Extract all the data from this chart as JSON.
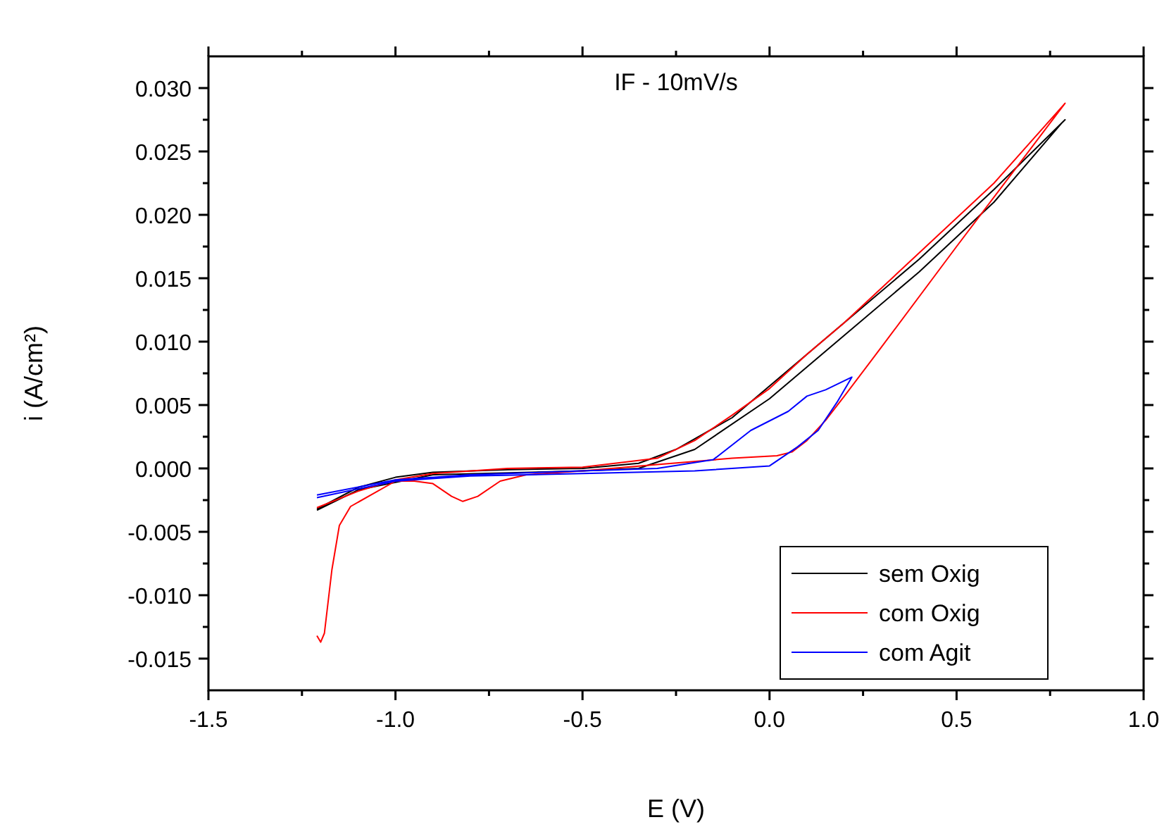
{
  "chart_data": {
    "type": "line",
    "title": "IF - 10mV/s",
    "xlabel": "E (V)",
    "ylabel": "i (A/cm²)",
    "xlim": [
      -1.5,
      1.0
    ],
    "ylim": [
      -0.0175,
      0.0325
    ],
    "xticks": [
      {
        "value": -1.5,
        "label": "-1.5"
      },
      {
        "value": -1.25,
        "label": null
      },
      {
        "value": -1.0,
        "label": "-1.0"
      },
      {
        "value": -0.75,
        "label": null
      },
      {
        "value": -0.5,
        "label": "-0.5"
      },
      {
        "value": -0.25,
        "label": null
      },
      {
        "value": 0,
        "label": "0.0"
      },
      {
        "value": 0.25,
        "label": null
      },
      {
        "value": 0.5,
        "label": "0.5"
      },
      {
        "value": 0.75,
        "label": null
      },
      {
        "value": 1.0,
        "label": "1.0"
      }
    ],
    "yticks": [
      {
        "value": -0.015,
        "label": "-0.015"
      },
      {
        "value": -0.0125,
        "label": null
      },
      {
        "value": -0.01,
        "label": "-0.010"
      },
      {
        "value": -0.0075,
        "label": null
      },
      {
        "value": -0.005,
        "label": "-0.005"
      },
      {
        "value": -0.0025,
        "label": null
      },
      {
        "value": 0,
        "label": "0.000"
      },
      {
        "value": 0.0025,
        "label": null
      },
      {
        "value": 0.005,
        "label": "0.005"
      },
      {
        "value": 0.0075,
        "label": null
      },
      {
        "value": 0.01,
        "label": "0.010"
      },
      {
        "value": 0.0125,
        "label": null
      },
      {
        "value": 0.015,
        "label": "0.015"
      },
      {
        "value": 0.0175,
        "label": null
      },
      {
        "value": 0.02,
        "label": "0.020"
      },
      {
        "value": 0.0225,
        "label": null
      },
      {
        "value": 0.025,
        "label": "0.025"
      },
      {
        "value": 0.0275,
        "label": null
      },
      {
        "value": 0.03,
        "label": "0.030"
      }
    ],
    "grid": false,
    "legend": "bottom right",
    "marker": "none",
    "line_style": "solid",
    "series": [
      {
        "name": "sem Oxig",
        "color": "#000000",
        "x": [
          -1.21,
          -1.1,
          -1.0,
          -0.9,
          -0.7,
          -0.5,
          -0.35,
          -0.25,
          -0.1,
          0,
          0.2,
          0.4,
          0.6,
          0.79,
          0.78,
          0.6,
          0.4,
          0.2,
          0,
          -0.2,
          -0.35,
          -0.5,
          -0.9,
          -1.1,
          -1.21
        ],
        "values": [
          -0.0032,
          -0.0015,
          -0.0007,
          -0.0003,
          -0.0001,
          0,
          0.0004,
          0.0015,
          0.004,
          0.0065,
          0.0115,
          0.0165,
          0.022,
          0.0275,
          0.0272,
          0.021,
          0.0155,
          0.0105,
          0.0055,
          0.0015,
          0,
          -0.0002,
          -0.0005,
          -0.0017,
          -0.0033
        ]
      },
      {
        "name": "com Oxig",
        "color": "#ff0000",
        "x": [
          -1.21,
          -1.2,
          -1.19,
          -1.17,
          -1.15,
          -1.12,
          -1.0,
          -0.95,
          -0.9,
          -0.85,
          -0.82,
          -0.78,
          -0.72,
          -0.65,
          -0.5,
          -0.3,
          -0.1,
          0.02,
          0.06,
          0.1,
          0.15,
          0.2,
          0.3,
          0.5,
          0.79,
          0.6,
          0.4,
          0.2,
          0.1,
          0,
          -0.1,
          -0.2,
          -0.3,
          -0.5,
          -0.7,
          -0.9,
          -1.0,
          -1.1,
          -1.21
        ],
        "values": [
          -0.0132,
          -0.0137,
          -0.013,
          -0.008,
          -0.0045,
          -0.003,
          -0.001,
          -0.001,
          -0.0012,
          -0.0022,
          -0.0026,
          -0.0022,
          -0.001,
          -0.0005,
          -0.0002,
          0.0003,
          0.0008,
          0.001,
          0.0013,
          0.0022,
          0.0038,
          0.0057,
          0.0096,
          0.0175,
          0.0288,
          0.0225,
          0.017,
          0.0115,
          0.009,
          0.0063,
          0.0042,
          0.0022,
          0.0008,
          0.0001,
          0,
          -0.0004,
          -0.0009,
          -0.0018,
          -0.0031
        ]
      },
      {
        "name": "com Agit",
        "color": "#0000ff",
        "x": [
          -1.21,
          -1.0,
          -0.8,
          -0.5,
          -0.2,
          0,
          0.075,
          0.13,
          0.18,
          0.22,
          0.15,
          0.1,
          0.05,
          -0.05,
          -0.15,
          -0.3,
          -0.5,
          -0.8,
          -1.0,
          -1.21
        ],
        "values": [
          -0.0023,
          -0.001,
          -0.0006,
          -0.0004,
          -0.0002,
          0.0002,
          0.0017,
          0.003,
          0.0052,
          0.0072,
          0.0062,
          0.0057,
          0.0045,
          0.003,
          0.0007,
          0,
          -0.0002,
          -0.0005,
          -0.0009,
          -0.0021
        ]
      }
    ]
  }
}
